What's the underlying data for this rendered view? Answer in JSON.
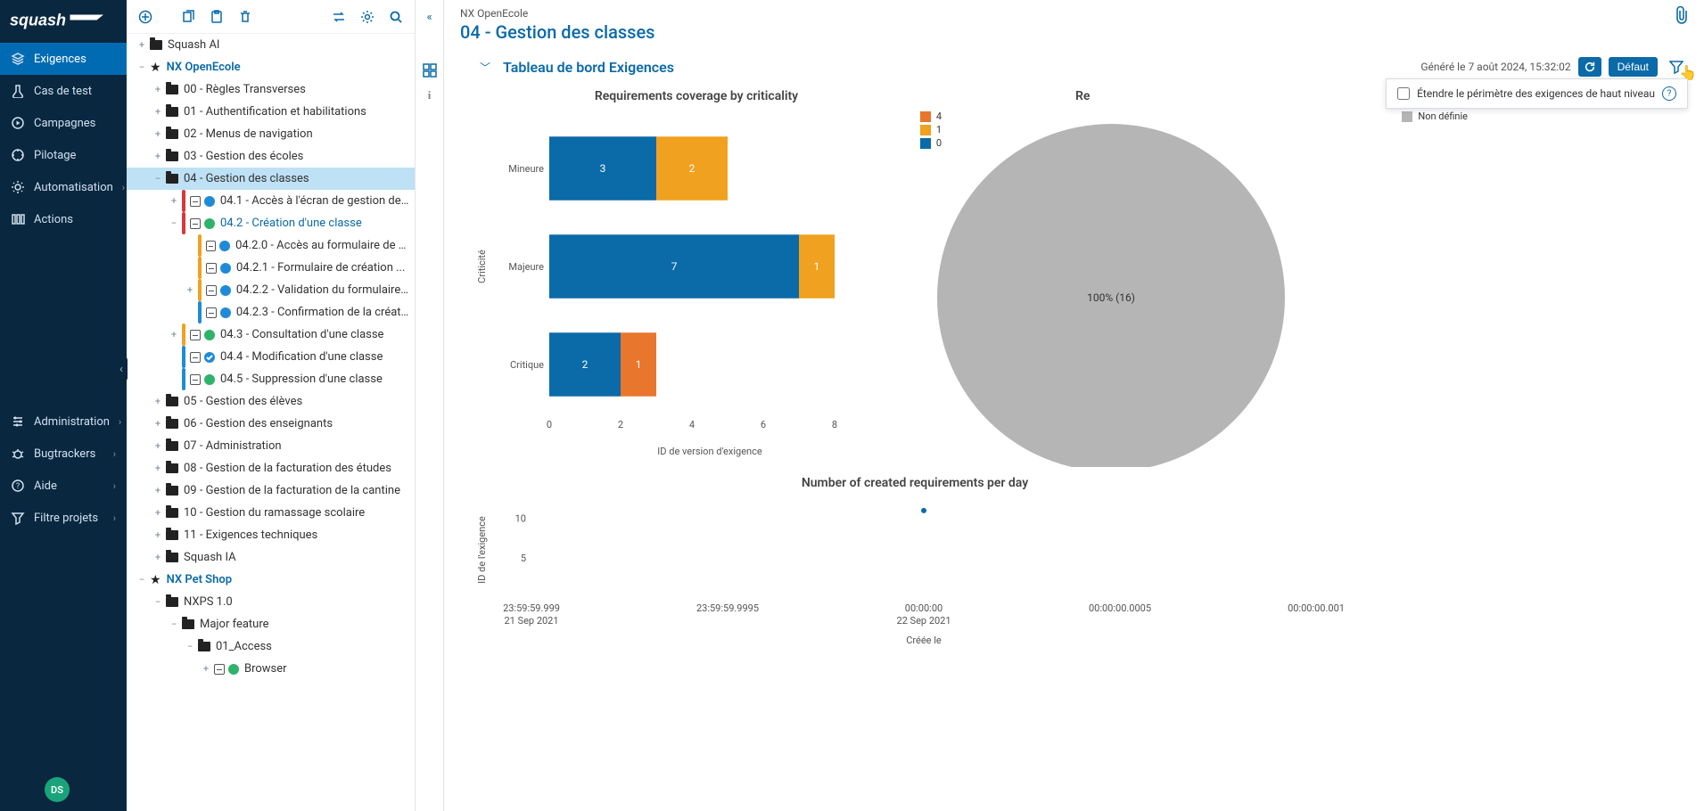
{
  "logo_text": "squash",
  "nav": {
    "items": [
      {
        "icon": "layers",
        "label": "Exigences",
        "active": true,
        "chev": false
      },
      {
        "icon": "tube",
        "label": "Cas de test",
        "active": false,
        "chev": false
      },
      {
        "icon": "play",
        "label": "Campagnes",
        "active": false,
        "chev": false
      },
      {
        "icon": "compass",
        "label": "Pilotage",
        "active": false,
        "chev": false
      },
      {
        "icon": "gear-cycle",
        "label": "Automatisation",
        "active": false,
        "chev": true
      },
      {
        "icon": "columns",
        "label": "Actions",
        "active": false,
        "chev": false
      }
    ],
    "bottom": [
      {
        "icon": "sliders",
        "label": "Administration",
        "chev": true
      },
      {
        "icon": "bug",
        "label": "Bugtrackers",
        "chev": true
      },
      {
        "icon": "help",
        "label": "Aide",
        "chev": true
      },
      {
        "icon": "funnel",
        "label": "Filtre projets",
        "chev": true
      }
    ],
    "avatar": "DS"
  },
  "tree": {
    "nodes": [
      {
        "depth": 0,
        "kind": "folder",
        "toggle": "+",
        "label": "Squash AI"
      },
      {
        "depth": 0,
        "kind": "project",
        "toggle": "−",
        "label": "NX OpenEcole"
      },
      {
        "depth": 1,
        "kind": "folder",
        "toggle": "+",
        "label": "00 - Règles Transverses"
      },
      {
        "depth": 1,
        "kind": "folder",
        "toggle": "+",
        "label": "01 - Authentification et habilitations"
      },
      {
        "depth": 1,
        "kind": "folder",
        "toggle": "+",
        "label": "02 - Menus de navigation"
      },
      {
        "depth": 1,
        "kind": "folder",
        "toggle": "+",
        "label": "03 - Gestion des écoles"
      },
      {
        "depth": 1,
        "kind": "folder",
        "toggle": "−",
        "label": "04 - Gestion des classes",
        "selected": true
      },
      {
        "depth": 2,
        "kind": "req",
        "toggle": "+",
        "crit": "#d9363e",
        "status": "#1f8bd6",
        "label": "04.1 - Accès à l'écran de gestion de..."
      },
      {
        "depth": 2,
        "kind": "req",
        "toggle": "−",
        "crit": "#d9363e",
        "status": "#2fb36b",
        "label": "04.2 - Création d'une classe",
        "link": true
      },
      {
        "depth": 3,
        "kind": "req",
        "toggle": "",
        "crit": "#f0a11f",
        "status": "#1f8bd6",
        "label": "04.2.0 - Accès au formulaire de c..."
      },
      {
        "depth": 3,
        "kind": "req",
        "toggle": "",
        "crit": "#f0a11f",
        "status": "#1f8bd6",
        "label": "04.2.1 - Formulaire de création ..."
      },
      {
        "depth": 3,
        "kind": "req",
        "toggle": "+",
        "crit": "#f0a11f",
        "status": "#1f8bd6",
        "label": "04.2.2 - Validation du formulaire..."
      },
      {
        "depth": 3,
        "kind": "req",
        "toggle": "",
        "crit": "#1f8bd6",
        "status": "#1f8bd6",
        "label": "04.2.3 - Confirmation de la créat..."
      },
      {
        "depth": 2,
        "kind": "req",
        "toggle": "+",
        "crit": "#f0a11f",
        "status": "#2fb36b",
        "label": "04.3 - Consultation d'une classe"
      },
      {
        "depth": 2,
        "kind": "req",
        "toggle": "",
        "crit": "#1f8bd6",
        "status": "#1f8bd6",
        "check": true,
        "label": "04.4 - Modification d'une classe"
      },
      {
        "depth": 2,
        "kind": "req",
        "toggle": "",
        "crit": "#1f8bd6",
        "status": "#2fb36b",
        "label": "04.5 - Suppression d'une classe"
      },
      {
        "depth": 1,
        "kind": "folder",
        "toggle": "+",
        "label": "05 - Gestion des élèves"
      },
      {
        "depth": 1,
        "kind": "folder",
        "toggle": "+",
        "label": "06 - Gestion des enseignants"
      },
      {
        "depth": 1,
        "kind": "folder",
        "toggle": "+",
        "label": "07 - Administration"
      },
      {
        "depth": 1,
        "kind": "folder",
        "toggle": "+",
        "label": "08 - Gestion de la facturation des études"
      },
      {
        "depth": 1,
        "kind": "folder",
        "toggle": "+",
        "label": "09 - Gestion de la facturation de la cantine"
      },
      {
        "depth": 1,
        "kind": "folder",
        "toggle": "+",
        "label": "10 - Gestion du ramassage scolaire"
      },
      {
        "depth": 1,
        "kind": "folder",
        "toggle": "+",
        "label": "11 - Exigences techniques"
      },
      {
        "depth": 1,
        "kind": "folder",
        "toggle": "+",
        "label": "Squash IA"
      },
      {
        "depth": 0,
        "kind": "project",
        "toggle": "−",
        "label": "NX Pet Shop"
      },
      {
        "depth": 1,
        "kind": "folder",
        "toggle": "−",
        "label": "NXPS 1.0"
      },
      {
        "depth": 2,
        "kind": "folder",
        "toggle": "−",
        "label": "Major feature"
      },
      {
        "depth": 3,
        "kind": "folder",
        "toggle": "−",
        "label": "01_Access"
      },
      {
        "depth": 4,
        "kind": "req",
        "toggle": "+",
        "crit": "",
        "status": "#2fb36b",
        "label": "Browser"
      }
    ]
  },
  "header": {
    "breadcrumb": "NX OpenEcole",
    "title": "04 - Gestion des classes",
    "dashboard_title": "Tableau de bord Exigences",
    "generated": "Généré le 7 août 2024, 15:32:02",
    "refresh_btn": "↻",
    "default_btn": "Défaut",
    "option_label": "Étendre le périmètre des exigences de haut niveau"
  },
  "bar_chart": {
    "type": "stacked-horizontal-bar",
    "title": "Requirements coverage by criticality",
    "y_label": "Criticité",
    "x_label": "ID de version d'exigence",
    "categories": [
      "Mineure",
      "Majeure",
      "Critique"
    ],
    "series": [
      {
        "name": "0",
        "color": "#0b6aa8",
        "values": [
          3,
          7,
          2
        ]
      },
      {
        "name": "1",
        "color": "#f0a11f",
        "values": [
          2,
          1,
          0
        ]
      },
      {
        "name": "4",
        "color": "#e8762d",
        "values": [
          0,
          0,
          1
        ]
      }
    ],
    "x_ticks": [
      0,
      2,
      4,
      6,
      8
    ],
    "xlim": [
      0,
      9
    ],
    "background": "#ffffff",
    "bar_height": 0.65,
    "title_fontsize": 14
  },
  "pie_chart": {
    "type": "pie",
    "title": "Re",
    "slices": [
      {
        "label": "Non définie",
        "value": 16,
        "percent": "100% (16)",
        "color": "#b5b5b5"
      }
    ],
    "legend_color": "#b5b5b5",
    "legend_label": "Non définie",
    "radius": 195,
    "title_fontsize": 14
  },
  "line_chart": {
    "type": "scatter",
    "title": "Number of created requirements per day",
    "y_label": "ID de l'exigence",
    "x_label": "Créée le",
    "y_ticks": [
      5,
      10
    ],
    "ylim": [
      0,
      12
    ],
    "x_tick_labels": [
      {
        "l1": "23:59:59.999",
        "l2": "21 Sep 2021"
      },
      {
        "l1": "23:59:59.9995",
        "l2": ""
      },
      {
        "l1": "00:00:00",
        "l2": "22 Sep 2021"
      },
      {
        "l1": "00:00:00.0005",
        "l2": ""
      },
      {
        "l1": "00:00:00.001",
        "l2": ""
      }
    ],
    "point": {
      "x": 0.5,
      "y": 11,
      "color": "#0b6aa8"
    },
    "title_fontsize": 14
  }
}
